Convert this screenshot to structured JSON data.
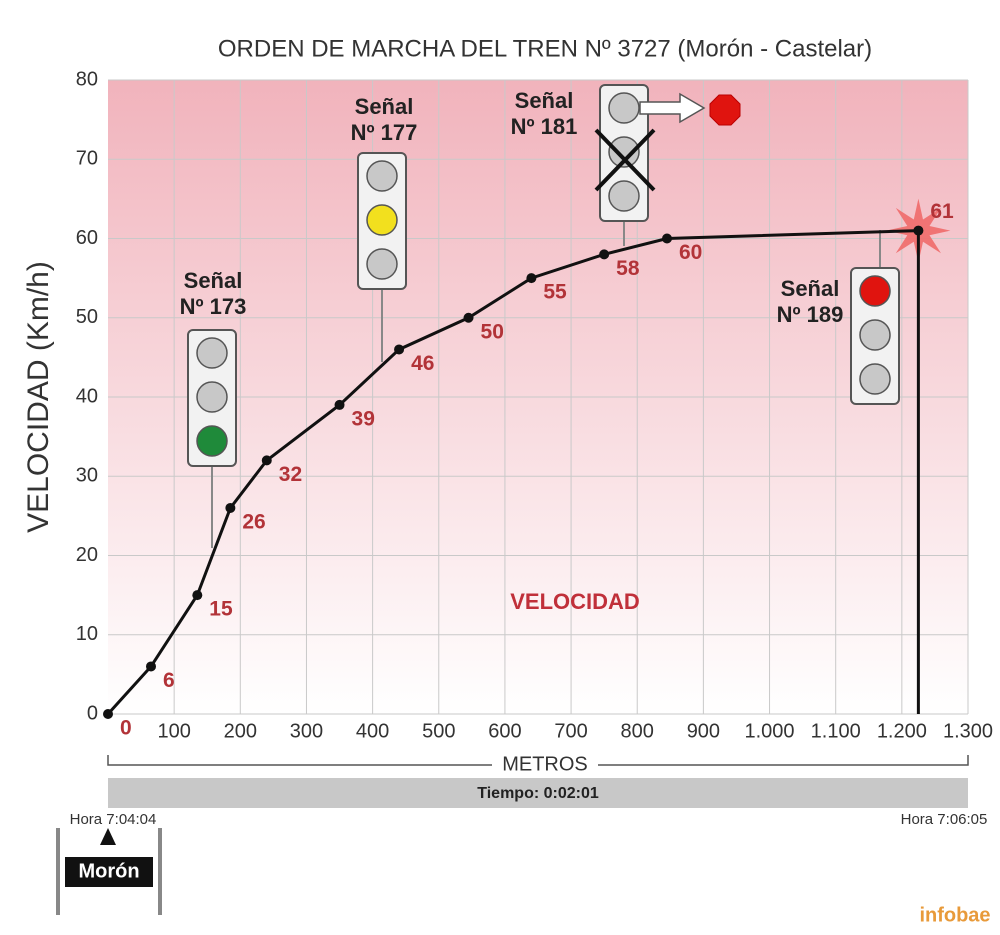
{
  "chart_data": {
    "type": "line",
    "title": "ORDEN DE MARCHA DEL TREN Nº 3727 (Morón - Castelar)",
    "y_label": "VELOCIDAD (Km/h)",
    "x_label": "METROS",
    "annotation": "VELOCIDAD",
    "x": [
      0,
      65,
      135,
      185,
      240,
      350,
      440,
      545,
      640,
      750,
      845,
      1225
    ],
    "values": [
      0,
      6,
      15,
      26,
      32,
      39,
      46,
      50,
      55,
      58,
      60,
      61
    ],
    "color": "#111111",
    "xlim": [
      0,
      1300
    ],
    "ylim": [
      0,
      80
    ],
    "xticks": [
      100,
      200,
      300,
      400,
      500,
      600,
      700,
      800,
      900,
      {
        "value": 1000,
        "label": "1.000"
      },
      {
        "value": 1100,
        "label": "1.100"
      },
      {
        "value": 1200,
        "label": "1.200"
      },
      {
        "value": 1300,
        "label": "1.300"
      }
    ],
    "yticks": [
      0,
      10,
      20,
      30,
      40,
      50,
      60,
      70,
      80
    ],
    "grid": true,
    "time_label": "Tiempo: 0:02:01",
    "start_label": "Hora 7:04:04",
    "end_label": "Hora 7:06:05",
    "station": "Morón",
    "source": "infobae",
    "signals": [
      {
        "label": [
          "Señal",
          "Nº 173"
        ],
        "lights": [
          "#c8c8c8",
          "#c8c8c8",
          "#1f8a3a"
        ]
      },
      {
        "label": [
          "Señal",
          "Nº 177"
        ],
        "lights": [
          "#c8c8c8",
          "#f2e01e",
          "#c8c8c8"
        ]
      },
      {
        "label": [
          "Señal",
          "Nº 181"
        ],
        "lights": [
          "#c8c8c8",
          "#c8c8c8",
          "#c8c8c8"
        ]
      },
      {
        "label": [
          "Señal",
          "Nº 189"
        ],
        "lights": [
          "#e0140f",
          "#c8c8c8",
          "#c8c8c8"
        ]
      }
    ]
  }
}
